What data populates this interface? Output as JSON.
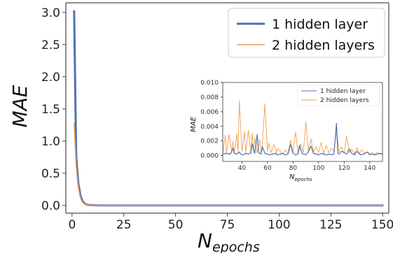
{
  "chart_data": [
    {
      "type": "line",
      "xlabel": "N",
      "xlabel_sub": "epochs",
      "ylabel": "MAE",
      "xlim": [
        -3,
        153
      ],
      "ylim": [
        -0.12,
        3.15
      ],
      "xticks": [
        "0",
        "25",
        "50",
        "75",
        "100",
        "125",
        "150"
      ],
      "yticks": [
        "0.0",
        "0.5",
        "1.0",
        "1.5",
        "2.0",
        "2.5",
        "3.0"
      ],
      "legend_position": "top-right",
      "series": [
        {
          "name": "1 hidden layer",
          "color": "#4c72b0",
          "x": [
            1,
            2,
            3,
            4,
            5,
            6,
            7,
            8,
            10,
            12,
            15,
            20,
            30,
            50,
            75,
            100,
            125,
            150
          ],
          "y": [
            3.02,
            0.75,
            0.35,
            0.16,
            0.07,
            0.03,
            0.015,
            0.008,
            0.004,
            0.002,
            0.001,
            0.001,
            0.001,
            0.0005,
            0.0005,
            0.0005,
            0.0005,
            0.0005
          ]
        },
        {
          "name": "2 hidden layers",
          "color": "#f0a050",
          "x": [
            1,
            2,
            3,
            4,
            5,
            6,
            7,
            8,
            10,
            12,
            15,
            20,
            30,
            50,
            75,
            100,
            125,
            150
          ],
          "y": [
            1.28,
            0.6,
            0.28,
            0.12,
            0.05,
            0.025,
            0.012,
            0.007,
            0.004,
            0.003,
            0.002,
            0.002,
            0.002,
            0.002,
            0.002,
            0.002,
            0.002,
            0.002
          ]
        }
      ]
    },
    {
      "type": "line",
      "xlabel": "N",
      "xlabel_sub": "epochs",
      "ylabel": "MAE",
      "xlim": [
        25,
        150
      ],
      "ylim": [
        -0.0008,
        0.01
      ],
      "xticks": [
        "40",
        "60",
        "80",
        "100",
        "120",
        "140"
      ],
      "yticks": [
        "0.000",
        "0.002",
        "0.004",
        "0.006",
        "0.008",
        "0.010"
      ],
      "legend_position": "top-right",
      "series": [
        {
          "name": "1 hidden layer",
          "color": "#4c72b0",
          "x": [
            25,
            28,
            31,
            33,
            34,
            36,
            38,
            39,
            41,
            43,
            45,
            47,
            48,
            50,
            52,
            53,
            55,
            56,
            58,
            60,
            62,
            64,
            66,
            68,
            70,
            72,
            74,
            76,
            78,
            80,
            82,
            84,
            85,
            87,
            88,
            90,
            92,
            94,
            96,
            98,
            100,
            102,
            104,
            106,
            108,
            110,
            112,
            114,
            115,
            116,
            118,
            120,
            122,
            124,
            126,
            128,
            130,
            132,
            134,
            136,
            138,
            140,
            142,
            144,
            146,
            148,
            150
          ],
          "y": [
            0.0002,
            0.0003,
            0.0002,
            0.001,
            0.0003,
            0.0002,
            0.0005,
            0.0002,
            0.0001,
            0.0003,
            0.0002,
            0.0004,
            0.0016,
            0.0003,
            0.0029,
            0.0004,
            0.0002,
            0.0012,
            0.0003,
            0.0002,
            0.0001,
            0.0002,
            0.0003,
            0.0001,
            0.0002,
            0.0003,
            0.0001,
            0.0002,
            0.0015,
            0.0003,
            0.0001,
            0.0002,
            0.0014,
            0.0003,
            0.0002,
            0.0001,
            0.0005,
            0.0013,
            0.0003,
            0.0002,
            0.0001,
            0.0003,
            0.0002,
            0.0001,
            0.0002,
            0.0001,
            0.0002,
            0.0044,
            0.0003,
            0.0002,
            0.0006,
            0.0004,
            0.0002,
            0.0009,
            0.0003,
            0.0001,
            0.0006,
            0.0002,
            0.0001,
            0.0003,
            0.0005,
            0.0001,
            0.0002,
            0.0001,
            0.0002,
            0.0003,
            0.0002
          ]
        },
        {
          "name": "2 hidden layers",
          "color": "#f0a050",
          "x": [
            25,
            27,
            28,
            30,
            32,
            33,
            34,
            36,
            37,
            38,
            40,
            42,
            43,
            45,
            47,
            48,
            49,
            50,
            52,
            54,
            55,
            56,
            58,
            60,
            61,
            63,
            65,
            67,
            68,
            70,
            72,
            74,
            76,
            78,
            80,
            82,
            84,
            86,
            88,
            90,
            92,
            94,
            96,
            98,
            100,
            102,
            104,
            106,
            108,
            110,
            112,
            114,
            116,
            118,
            120,
            122,
            124,
            126,
            128,
            130,
            132,
            134,
            136,
            138,
            140,
            142,
            144,
            146,
            148,
            150
          ],
          "y": [
            0.0003,
            0.0028,
            0.0004,
            0.0029,
            0.0005,
            0.0019,
            0.0003,
            0.003,
            0.0005,
            0.0075,
            0.0006,
            0.0033,
            0.0004,
            0.0035,
            0.0003,
            0.0031,
            0.0006,
            0.0024,
            0.0004,
            0.0022,
            0.0003,
            0.0015,
            0.0071,
            0.0006,
            0.0017,
            0.0004,
            0.0015,
            0.0003,
            0.001,
            0.0006,
            0.0002,
            0.0008,
            0.0003,
            0.0021,
            0.0004,
            0.0032,
            0.0003,
            0.0016,
            0.0004,
            0.0046,
            0.0006,
            0.0023,
            0.0005,
            0.0012,
            0.0004,
            0.0018,
            0.0003,
            0.0014,
            0.0004,
            0.001,
            0.0006,
            0.0036,
            0.0005,
            0.0012,
            0.0003,
            0.0027,
            0.0004,
            0.0009,
            0.0002,
            0.0011,
            0.0003,
            0.0008,
            0.0002,
            0.0005,
            0.0003,
            0.0004,
            0.0002,
            0.0004,
            0.0002,
            0.0003
          ]
        }
      ]
    }
  ]
}
